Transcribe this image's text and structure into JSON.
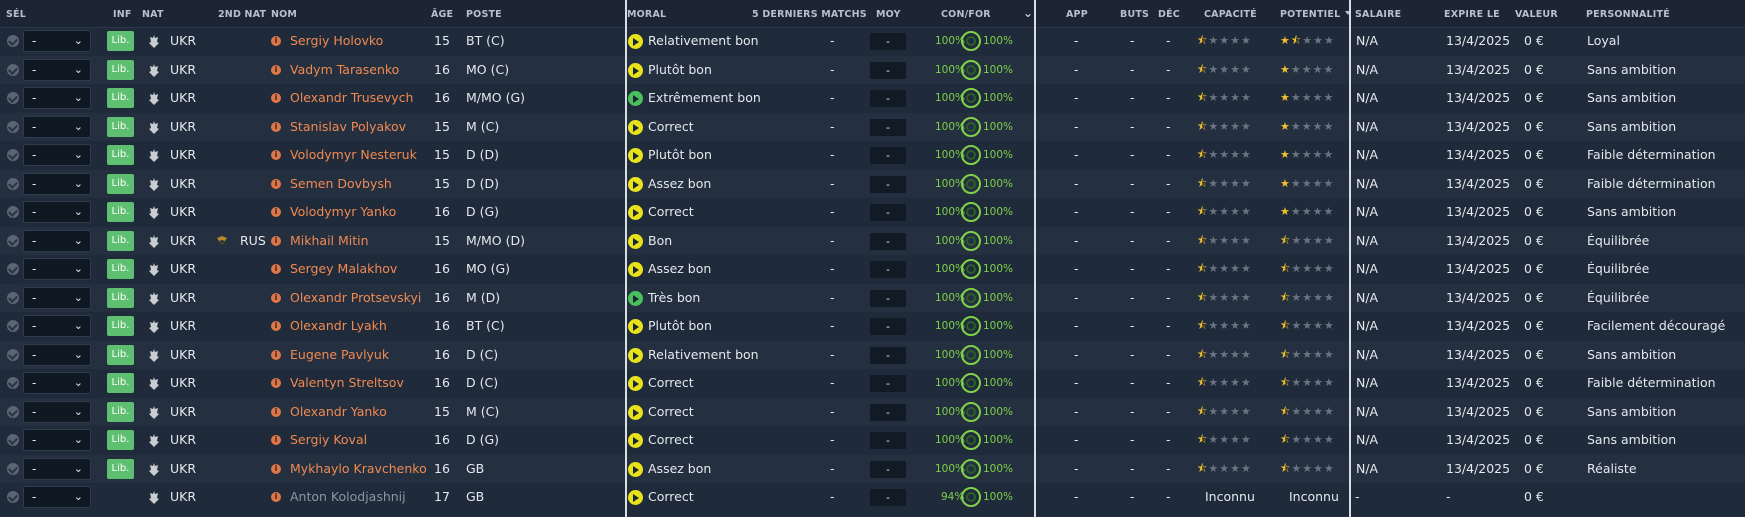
{
  "headers": {
    "sel": "SÉL",
    "inf": "INF",
    "nat": "NAT",
    "nat2": "2ND NAT",
    "nom": "NOM",
    "age": "ÂGE",
    "poste": "POSTE",
    "moral": "MORAL",
    "derniers": "5 DERNIERS MATCHS",
    "moy": "MOY",
    "confor": "CON/FOR",
    "app": "APP",
    "buts": "BUTS",
    "dec": "DÉC",
    "capacite": "CAPACITÉ",
    "potentiel": "POTENTIEL",
    "salaire": "SALAIRE",
    "expire": "EXPIRE LE",
    "valeur": "VALEUR",
    "personnalite": "PERSONNALITÉ"
  },
  "colors": {
    "background": "#1f2a3a",
    "row_alt": "#242f40",
    "name_orange": "#f08a52",
    "lib_green": "#5fbf71",
    "mood_yellow": "#e8e21b",
    "mood_green": "#49c15a",
    "con_green": "#7fd14a",
    "star_gold": "#f0c12a"
  },
  "rows": [
    {
      "sel": "-",
      "inf": "Lib.",
      "nat": "UKR",
      "nat2": "",
      "name": "Sergiy Holovko",
      "age": "15",
      "pos": "BT (C)",
      "mood": "Relativement bon",
      "mood_icon": "yellow",
      "last5": "-",
      "avg": "-",
      "con": "100%",
      "for": "100%",
      "app": "-",
      "buts": "-",
      "dec": "-",
      "cap_stars": 0.5,
      "pot_stars": 1.5,
      "salaire": "N/A",
      "expire": "13/4/2025",
      "valeur": "0 €",
      "perso": "Loyal"
    },
    {
      "sel": "-",
      "inf": "Lib.",
      "nat": "UKR",
      "nat2": "",
      "name": "Vadym Tarasenko",
      "age": "16",
      "pos": "MO (C)",
      "mood": "Plutôt bon",
      "mood_icon": "yellow",
      "last5": "-",
      "avg": "-",
      "con": "100%",
      "for": "100%",
      "app": "-",
      "buts": "-",
      "dec": "-",
      "cap_stars": 0.5,
      "pot_stars": 1,
      "salaire": "N/A",
      "expire": "13/4/2025",
      "valeur": "0 €",
      "perso": "Sans ambition"
    },
    {
      "sel": "-",
      "inf": "Lib.",
      "nat": "UKR",
      "nat2": "",
      "name": "Olexandr Trusevych",
      "age": "16",
      "pos": "M/MO (G)",
      "mood": "Extrêmement bon",
      "mood_icon": "green",
      "last5": "-",
      "avg": "-",
      "con": "100%",
      "for": "100%",
      "app": "-",
      "buts": "-",
      "dec": "-",
      "cap_stars": 0.5,
      "pot_stars": 1,
      "salaire": "N/A",
      "expire": "13/4/2025",
      "valeur": "0 €",
      "perso": "Sans ambition"
    },
    {
      "sel": "-",
      "inf": "Lib.",
      "nat": "UKR",
      "nat2": "",
      "name": "Stanislav Polyakov",
      "age": "15",
      "pos": "M (C)",
      "mood": "Correct",
      "mood_icon": "yellow",
      "last5": "-",
      "avg": "-",
      "con": "100%",
      "for": "100%",
      "app": "-",
      "buts": "-",
      "dec": "-",
      "cap_stars": 0.5,
      "pot_stars": 1,
      "salaire": "N/A",
      "expire": "13/4/2025",
      "valeur": "0 €",
      "perso": "Sans ambition"
    },
    {
      "sel": "-",
      "inf": "Lib.",
      "nat": "UKR",
      "nat2": "",
      "name": "Volodymyr Nesteruk",
      "age": "15",
      "pos": "D (D)",
      "mood": "Plutôt bon",
      "mood_icon": "yellow",
      "last5": "-",
      "avg": "-",
      "con": "100%",
      "for": "100%",
      "app": "-",
      "buts": "-",
      "dec": "-",
      "cap_stars": 0.5,
      "pot_stars": 1,
      "salaire": "N/A",
      "expire": "13/4/2025",
      "valeur": "0 €",
      "perso": "Faible détermination"
    },
    {
      "sel": "-",
      "inf": "Lib.",
      "nat": "UKR",
      "nat2": "",
      "name": "Semen Dovbysh",
      "age": "15",
      "pos": "D (D)",
      "mood": "Assez bon",
      "mood_icon": "yellow",
      "last5": "-",
      "avg": "-",
      "con": "100%",
      "for": "100%",
      "app": "-",
      "buts": "-",
      "dec": "-",
      "cap_stars": 0.5,
      "pot_stars": 1,
      "salaire": "N/A",
      "expire": "13/4/2025",
      "valeur": "0 €",
      "perso": "Faible détermination"
    },
    {
      "sel": "-",
      "inf": "Lib.",
      "nat": "UKR",
      "nat2": "",
      "name": "Volodymyr Yanko",
      "age": "16",
      "pos": "D (G)",
      "mood": "Correct",
      "mood_icon": "yellow",
      "last5": "-",
      "avg": "-",
      "con": "100%",
      "for": "100%",
      "app": "-",
      "buts": "-",
      "dec": "-",
      "cap_stars": 0.5,
      "pot_stars": 1,
      "salaire": "N/A",
      "expire": "13/4/2025",
      "valeur": "0 €",
      "perso": "Sans ambition"
    },
    {
      "sel": "-",
      "inf": "Lib.",
      "nat": "UKR",
      "nat2": "RUS",
      "name": "Mikhail Mitin",
      "age": "15",
      "pos": "M/MO (D)",
      "mood": "Bon",
      "mood_icon": "yellow",
      "last5": "-",
      "avg": "-",
      "con": "100%",
      "for": "100%",
      "app": "-",
      "buts": "-",
      "dec": "-",
      "cap_stars": 0.5,
      "pot_stars": 0.5,
      "salaire": "N/A",
      "expire": "13/4/2025",
      "valeur": "0 €",
      "perso": "Équilibrée"
    },
    {
      "sel": "-",
      "inf": "Lib.",
      "nat": "UKR",
      "nat2": "",
      "name": "Sergey Malakhov",
      "age": "16",
      "pos": "MO (G)",
      "mood": "Assez bon",
      "mood_icon": "yellow",
      "last5": "-",
      "avg": "-",
      "con": "100%",
      "for": "100%",
      "app": "-",
      "buts": "-",
      "dec": "-",
      "cap_stars": 0.5,
      "pot_stars": 0.5,
      "salaire": "N/A",
      "expire": "13/4/2025",
      "valeur": "0 €",
      "perso": "Équilibrée"
    },
    {
      "sel": "-",
      "inf": "Lib.",
      "nat": "UKR",
      "nat2": "",
      "name": "Olexandr Protsevskyi",
      "age": "16",
      "pos": "M (D)",
      "mood": "Très bon",
      "mood_icon": "green",
      "last5": "-",
      "avg": "-",
      "con": "100%",
      "for": "100%",
      "app": "-",
      "buts": "-",
      "dec": "-",
      "cap_stars": 0.5,
      "pot_stars": 0.5,
      "salaire": "N/A",
      "expire": "13/4/2025",
      "valeur": "0 €",
      "perso": "Équilibrée"
    },
    {
      "sel": "-",
      "inf": "Lib.",
      "nat": "UKR",
      "nat2": "",
      "name": "Olexandr Lyakh",
      "age": "16",
      "pos": "BT (C)",
      "mood": "Plutôt bon",
      "mood_icon": "yellow",
      "last5": "-",
      "avg": "-",
      "con": "100%",
      "for": "100%",
      "app": "-",
      "buts": "-",
      "dec": "-",
      "cap_stars": 0.5,
      "pot_stars": 0.5,
      "salaire": "N/A",
      "expire": "13/4/2025",
      "valeur": "0 €",
      "perso": "Facilement découragé"
    },
    {
      "sel": "-",
      "inf": "Lib.",
      "nat": "UKR",
      "nat2": "",
      "name": "Eugene Pavlyuk",
      "age": "16",
      "pos": "D (C)",
      "mood": "Relativement bon",
      "mood_icon": "yellow",
      "last5": "-",
      "avg": "-",
      "con": "100%",
      "for": "100%",
      "app": "-",
      "buts": "-",
      "dec": "-",
      "cap_stars": 0.5,
      "pot_stars": 0.5,
      "salaire": "N/A",
      "expire": "13/4/2025",
      "valeur": "0 €",
      "perso": "Sans ambition"
    },
    {
      "sel": "-",
      "inf": "Lib.",
      "nat": "UKR",
      "nat2": "",
      "name": "Valentyn Streltsov",
      "age": "16",
      "pos": "D (C)",
      "mood": "Correct",
      "mood_icon": "yellow",
      "last5": "-",
      "avg": "-",
      "con": "100%",
      "for": "100%",
      "app": "-",
      "buts": "-",
      "dec": "-",
      "cap_stars": 0.5,
      "pot_stars": 0.5,
      "salaire": "N/A",
      "expire": "13/4/2025",
      "valeur": "0 €",
      "perso": "Faible détermination"
    },
    {
      "sel": "-",
      "inf": "Lib.",
      "nat": "UKR",
      "nat2": "",
      "name": "Olexandr Yanko",
      "age": "15",
      "pos": "M (C)",
      "mood": "Correct",
      "mood_icon": "yellow",
      "last5": "-",
      "avg": "-",
      "con": "100%",
      "for": "100%",
      "app": "-",
      "buts": "-",
      "dec": "-",
      "cap_stars": 0.5,
      "pot_stars": 0.5,
      "salaire": "N/A",
      "expire": "13/4/2025",
      "valeur": "0 €",
      "perso": "Sans ambition"
    },
    {
      "sel": "-",
      "inf": "Lib.",
      "nat": "UKR",
      "nat2": "",
      "name": "Sergiy Koval",
      "age": "16",
      "pos": "D (G)",
      "mood": "Correct",
      "mood_icon": "yellow",
      "last5": "-",
      "avg": "-",
      "con": "100%",
      "for": "100%",
      "app": "-",
      "buts": "-",
      "dec": "-",
      "cap_stars": 0.5,
      "pot_stars": 0.5,
      "salaire": "N/A",
      "expire": "13/4/2025",
      "valeur": "0 €",
      "perso": "Sans ambition"
    },
    {
      "sel": "-",
      "inf": "Lib.",
      "nat": "UKR",
      "nat2": "",
      "name": "Mykhaylo Kravchenko",
      "age": "16",
      "pos": "GB",
      "mood": "Assez bon",
      "mood_icon": "yellow",
      "last5": "-",
      "avg": "-",
      "con": "100%",
      "for": "100%",
      "app": "-",
      "buts": "-",
      "dec": "-",
      "cap_stars": 0.5,
      "pot_stars": 0.5,
      "salaire": "N/A",
      "expire": "13/4/2025",
      "valeur": "0 €",
      "perso": "Réaliste"
    },
    {
      "sel": "-",
      "inf": "",
      "nat": "UKR",
      "nat2": "",
      "name": "Anton Kolodjashnij",
      "age": "17",
      "pos": "GB",
      "mood": "Correct",
      "mood_icon": "yellow",
      "last5": "-",
      "avg": "-",
      "con": "94%",
      "for": "100%",
      "app": "-",
      "buts": "-",
      "dec": "-",
      "cap_text": "Inconnu",
      "pot_text": "Inconnu",
      "salaire": "-",
      "expire": "-",
      "valeur": "0 €",
      "perso": ""
    }
  ]
}
